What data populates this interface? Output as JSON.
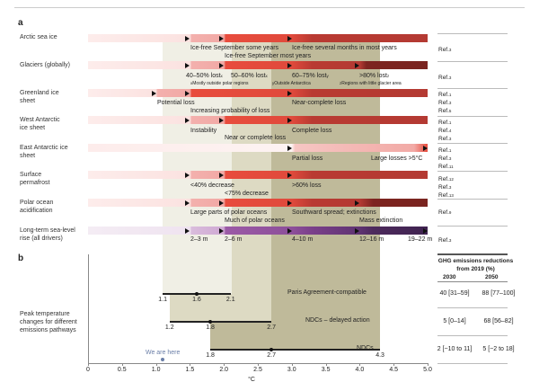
{
  "panel_a_label": "a",
  "panel_b_label": "b",
  "rows": [
    {
      "name": "Arctic  sea ice",
      "thresholds_c": [
        1.5,
        2.0,
        3.0
      ],
      "labels": [
        "Ice-free September some years",
        "Ice-free several months in most years",
        "Ice-free September most years"
      ],
      "refs": [
        {
          "t": "Ref.",
          "n": "3"
        }
      ]
    },
    {
      "name": "Glaciers (globally)",
      "thresholds_c": [
        1.5,
        2.0,
        3.0,
        4.0
      ],
      "labels": [
        "40–50% lost",
        "50–60% lost",
        "60–75% lost",
        ">80% lost"
      ],
      "label_notes": [
        "x",
        "x",
        "y",
        "z"
      ],
      "footnotes": [
        "Mostly outside polar regions",
        "Outside Antarctica",
        "Regions with little glacier area"
      ],
      "refs": [
        {
          "t": "Ref.",
          "n": "3"
        }
      ]
    },
    {
      "name": "Greenland ice sheet",
      "thresholds_c": [
        1.0,
        1.5,
        3.0
      ],
      "labels": [
        "Potential loss",
        "Near-complete loss",
        "Increasing probability of loss"
      ],
      "refs": [
        {
          "t": "Ref.",
          "n": "1"
        },
        {
          "t": "Ref.",
          "n": "3"
        },
        {
          "t": "Ref.",
          "n": "5"
        }
      ]
    },
    {
      "name": "West Antarctic ice sheet",
      "thresholds_c": [
        1.5,
        2.0,
        3.0
      ],
      "labels": [
        "Instability",
        "Complete loss",
        "Near or complete loss"
      ],
      "refs": [
        {
          "t": "Ref.",
          "n": "1"
        },
        {
          "t": "Ref.",
          "n": "4"
        },
        {
          "t": "Ref.",
          "n": "3"
        }
      ]
    },
    {
      "name": "East Antarctic ice sheet",
      "thresholds_c": [
        3.0,
        5.0
      ],
      "labels": [
        "Partial loss",
        "Large losses >5°C"
      ],
      "refs": [
        {
          "t": "Ref.",
          "n": "1"
        },
        {
          "t": "Ref.",
          "n": "3"
        },
        {
          "t": "Ref.",
          "n": "11"
        }
      ]
    },
    {
      "name": "Surface permafrost",
      "thresholds_c": [
        1.5,
        2.0,
        3.0
      ],
      "labels": [
        "<40% decrease",
        ">60% loss",
        "<75% decrease"
      ],
      "refs": [
        {
          "t": "Ref.",
          "n": "12"
        },
        {
          "t": "Ref.",
          "n": "3"
        },
        {
          "t": "Ref.",
          "n": "13"
        }
      ]
    },
    {
      "name": "Polar ocean acidification",
      "thresholds_c": [
        1.5,
        2.0,
        3.0,
        4.0
      ],
      "labels": [
        "Large parts of polar oceans",
        "Southward spread; extinctions",
        "Much of polar oceans",
        "Mass extinction"
      ],
      "refs": [
        {
          "t": "Ref.",
          "n": "9"
        }
      ]
    },
    {
      "name": "Long-term sea-level rise (all drivers)",
      "thresholds_c": [
        1.5,
        2.0,
        3.0,
        4.0,
        5.0
      ],
      "labels": [
        "2–3 m",
        "2–6 m",
        "4–10 m",
        "12–16 m",
        "19–22 m"
      ],
      "refs": [
        {
          "t": "Ref.",
          "n": "3"
        }
      ]
    }
  ],
  "chart_data": {
    "type": "range",
    "xlabel": "°C",
    "xlim": [
      0,
      5.0
    ],
    "xticks": [
      "0",
      "0.5",
      "1.0",
      "1.5",
      "2.0",
      "2.5",
      "3.0",
      "3.5",
      "4.0",
      "4.5",
      "5.0"
    ],
    "ylabel": "Peak temperature changes for different emissions pathways",
    "pathways": [
      {
        "name": "Paris Agreement-compatible",
        "low": 1.1,
        "median": 1.6,
        "high": 2.1,
        "low_label": "1.1",
        "median_label": "1.6",
        "high_label": "2.1"
      },
      {
        "name": "NDCs – delayed action",
        "low": 1.2,
        "median": 1.8,
        "high": 2.7,
        "low_label": "1.2",
        "median_label": "1.8",
        "high_label": "2.7"
      },
      {
        "name": "NDCs",
        "low": 1.8,
        "median": 2.7,
        "high": 4.3,
        "low_label": "1.8",
        "median_label": "2.7",
        "high_label": "4.3"
      }
    ],
    "current": {
      "label": "We are here",
      "value": 1.1
    },
    "colors": {
      "band1": "#f0efe5",
      "band2": "#dddac3",
      "band3": "#bfba9a",
      "current": "#6b7fa8"
    }
  },
  "table": {
    "title": "GHG emissions reductions from 2019 (%)",
    "columns": [
      "2030",
      "2050"
    ],
    "rows": [
      [
        "40 [31–59]",
        "88 [77–100]"
      ],
      [
        "5 [0–14]",
        "68 [56–82]"
      ],
      [
        "2 [−10 to 11]",
        "5 [−2 to 18]"
      ]
    ]
  }
}
